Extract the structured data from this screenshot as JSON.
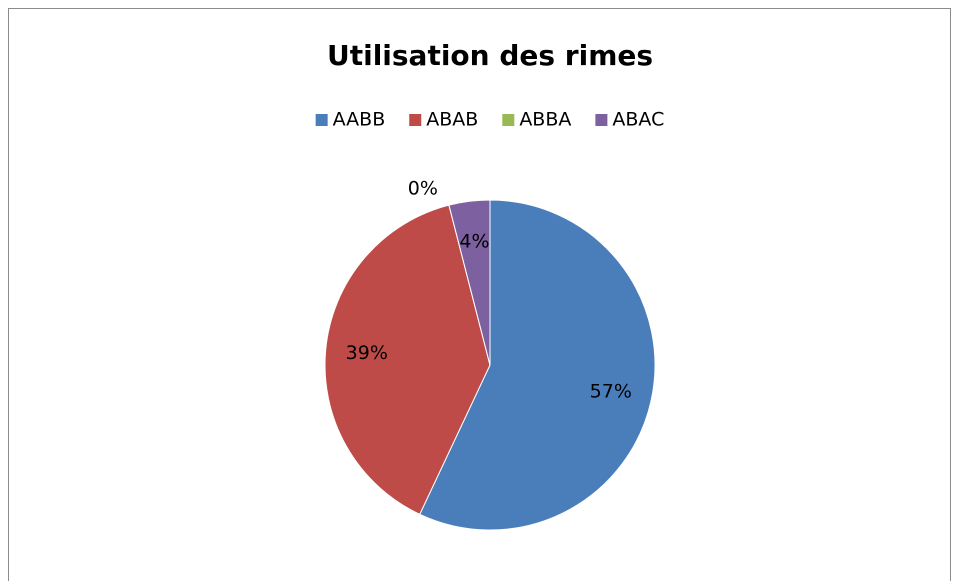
{
  "chart_data": {
    "type": "pie",
    "title": "Utilisation des rimes",
    "categories": [
      "AABB",
      "ABAB",
      "ABBA",
      "ABAC"
    ],
    "values": [
      57,
      39,
      0,
      4
    ],
    "value_labels": [
      "57%",
      "39%",
      "0%",
      "4%"
    ],
    "colors": [
      "#4a7ebb",
      "#be4b48",
      "#98b954",
      "#7d60a0"
    ],
    "legend": "top"
  }
}
